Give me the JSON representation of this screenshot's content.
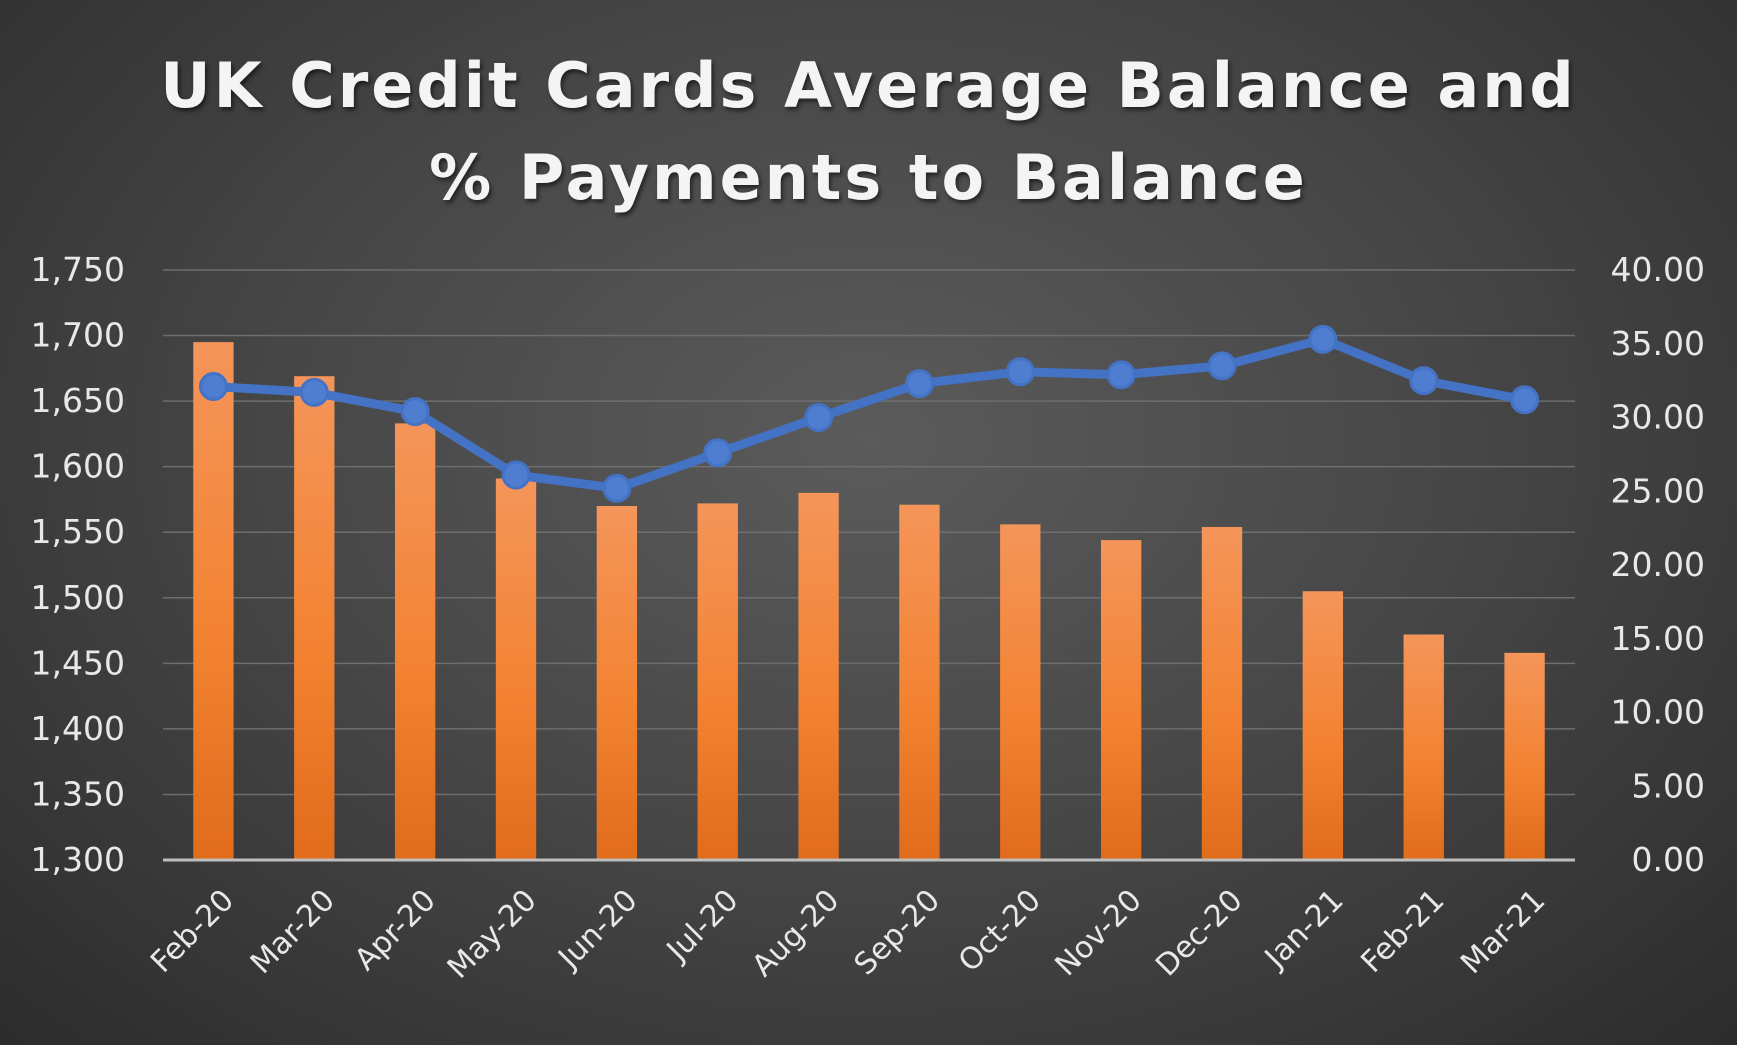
{
  "chart_data": {
    "type": "bar",
    "title": [
      "UK Credit Cards Average Balance and",
      "% Payments to Balance"
    ],
    "categories": [
      "Feb-20",
      "Mar-20",
      "Apr-20",
      "May-20",
      "Jun-20",
      "Jul-20",
      "Aug-20",
      "Sep-20",
      "Oct-20",
      "Nov-20",
      "Dec-20",
      "Jan-21",
      "Feb-21",
      "Mar-21"
    ],
    "series": [
      {
        "type": "bar",
        "axis": "left",
        "color": "#f07d2c",
        "values": [
          1695,
          1669,
          1633,
          1591,
          1570,
          1572,
          1580,
          1571,
          1556,
          1544,
          1554,
          1505,
          1472,
          1458
        ]
      },
      {
        "type": "line",
        "axis": "right",
        "color": "#4472c4",
        "values": [
          32.1,
          31.7,
          30.4,
          26.1,
          25.2,
          27.6,
          30.0,
          32.3,
          33.1,
          32.9,
          33.5,
          35.3,
          32.5,
          31.2
        ]
      }
    ],
    "y_left": {
      "ylim": [
        1300,
        1750
      ],
      "ticks": [
        1300,
        1350,
        1400,
        1450,
        1500,
        1550,
        1600,
        1650,
        1700,
        1750
      ],
      "tick_labels": [
        "1,300",
        "1,350",
        "1,400",
        "1,450",
        "1,500",
        "1,550",
        "1,600",
        "1,650",
        "1,700",
        "1,750"
      ]
    },
    "y_right": {
      "ylim": [
        0,
        40
      ],
      "ticks": [
        0,
        5,
        10,
        15,
        20,
        25,
        30,
        35,
        40
      ],
      "tick_labels": [
        "0.00",
        "5.00",
        "10.00",
        "15.00",
        "20.00",
        "25.00",
        "30.00",
        "35.00",
        "40.00"
      ]
    },
    "grid": true,
    "legend": "none"
  }
}
